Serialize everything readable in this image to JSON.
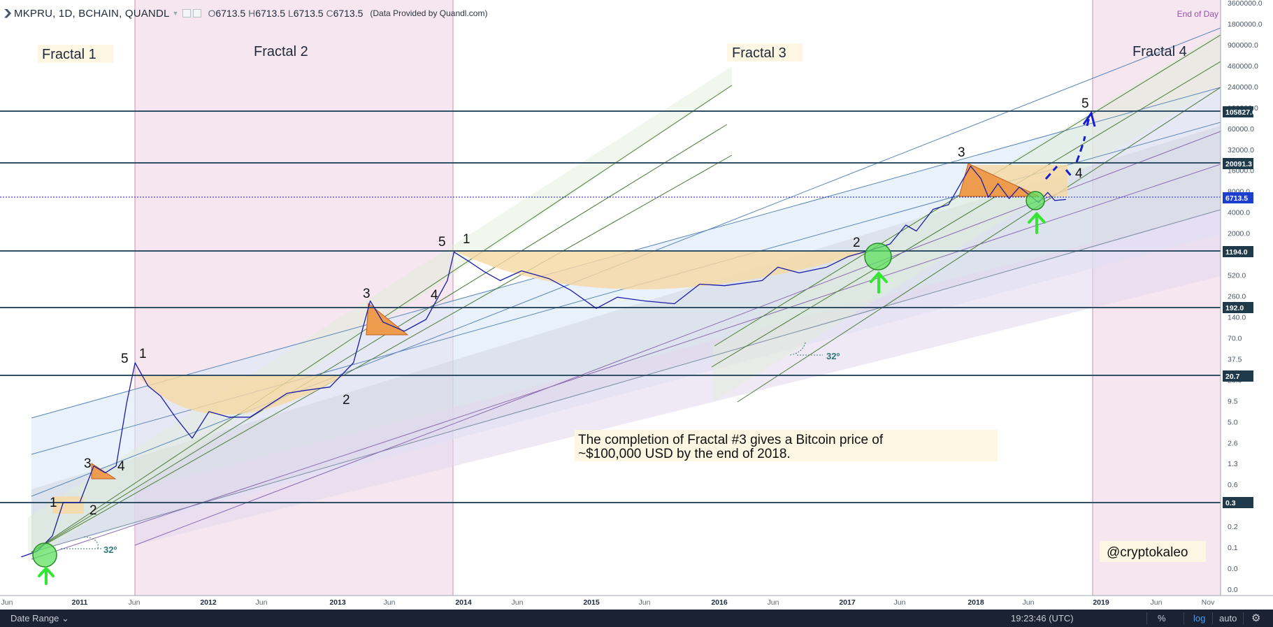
{
  "header": {
    "symbol": "MKPRU, 1D, BCHAIN, QUANDL",
    "ohlc": {
      "o": "6713.5",
      "h": "6713.5",
      "l": "6713.5",
      "c": "6713.5"
    },
    "provider": "(Data Provided by Quandl.com)",
    "end_of_day": "End of Day"
  },
  "footer": {
    "date_range": "Date Range",
    "time": "19:23:46 (UTC)",
    "percent": "%",
    "log": "log",
    "auto": "auto"
  },
  "colors": {
    "price_line": "#1c1ca8",
    "level_line": "#2f5066",
    "accent_label": "#1f3a4a",
    "current_price": "#1c3fd0",
    "fractal_shade": "#f3e4ee",
    "target_arrow": "#1a1ad0",
    "arrow_green": "#32e632",
    "annotation_bg": "#fdf6e3"
  },
  "chart_data": {
    "type": "line",
    "title": "",
    "scale": "log",
    "y_ticks": [
      "3600000.0",
      "1800000.0",
      "900000.0",
      "460000.0",
      "240000.0",
      "120000.0",
      "60000.0",
      "32000.0",
      "16000.0",
      "8000.0",
      "4000.0",
      "2000.0",
      "1000.0",
      "520.0",
      "260.0",
      "140.0",
      "70.0",
      "37.5",
      "20.0",
      "9.5",
      "5.0",
      "2.6",
      "1.3",
      "0.6",
      "0.3",
      "0.2",
      "0.1",
      "0.0",
      "0.0"
    ],
    "x_ticks": [
      "Jun",
      "2011",
      "Jun",
      "2012",
      "Jun",
      "2013",
      "Jun",
      "2014",
      "Jun",
      "2015",
      "Jun",
      "2016",
      "Jun",
      "2017",
      "Jun",
      "2018",
      "Jun",
      "2019",
      "Jun",
      "Nov"
    ],
    "price_labels": [
      "105827.6",
      "20091.3",
      "6713.5",
      "1194.0",
      "192.0",
      "20.7",
      "0.3"
    ],
    "series": [
      {
        "values": [
          {
            "x": "2010-07-18",
            "y": 0.05
          },
          {
            "x": "2010-09-01",
            "y": 0.06
          },
          {
            "x": "2010-10-15",
            "y": 0.1
          },
          {
            "x": "2010-11-15",
            "y": 0.3
          },
          {
            "x": "2011-01-01",
            "y": 0.3
          },
          {
            "x": "2011-02-10",
            "y": 1.0
          },
          {
            "x": "2011-03-15",
            "y": 0.8
          },
          {
            "x": "2011-04-15",
            "y": 1.0
          },
          {
            "x": "2011-05-15",
            "y": 8
          },
          {
            "x": "2011-06-08",
            "y": 30
          },
          {
            "x": "2011-07-15",
            "y": 14
          },
          {
            "x": "2011-08-20",
            "y": 10
          },
          {
            "x": "2011-10-01",
            "y": 5
          },
          {
            "x": "2011-11-18",
            "y": 2.5
          },
          {
            "x": "2012-01-05",
            "y": 6
          },
          {
            "x": "2012-03-01",
            "y": 5
          },
          {
            "x": "2012-05-01",
            "y": 5
          },
          {
            "x": "2012-08-15",
            "y": 11
          },
          {
            "x": "2012-10-01",
            "y": 12
          },
          {
            "x": "2012-12-15",
            "y": 13.5
          },
          {
            "x": "2013-02-20",
            "y": 30
          },
          {
            "x": "2013-04-09",
            "y": 230
          },
          {
            "x": "2013-05-15",
            "y": 115
          },
          {
            "x": "2013-07-15",
            "y": 85
          },
          {
            "x": "2013-09-15",
            "y": 125
          },
          {
            "x": "2013-11-15",
            "y": 450
          },
          {
            "x": "2013-12-04",
            "y": 1150
          },
          {
            "x": "2014-01-15",
            "y": 850
          },
          {
            "x": "2014-03-01",
            "y": 600
          },
          {
            "x": "2014-04-15",
            "y": 450
          },
          {
            "x": "2014-06-15",
            "y": 620
          },
          {
            "x": "2014-09-01",
            "y": 480
          },
          {
            "x": "2014-11-01",
            "y": 330
          },
          {
            "x": "2015-01-14",
            "y": 180
          },
          {
            "x": "2015-03-15",
            "y": 260
          },
          {
            "x": "2015-06-01",
            "y": 230
          },
          {
            "x": "2015-08-25",
            "y": 210
          },
          {
            "x": "2015-11-05",
            "y": 400
          },
          {
            "x": "2016-01-15",
            "y": 380
          },
          {
            "x": "2016-05-01",
            "y": 450
          },
          {
            "x": "2016-06-15",
            "y": 700
          },
          {
            "x": "2016-08-15",
            "y": 580
          },
          {
            "x": "2016-11-01",
            "y": 700
          },
          {
            "x": "2017-01-03",
            "y": 1000
          },
          {
            "x": "2017-03-01",
            "y": 1200
          },
          {
            "x": "2017-05-01",
            "y": 1500
          },
          {
            "x": "2017-06-15",
            "y": 2800
          },
          {
            "x": "2017-07-15",
            "y": 2300
          },
          {
            "x": "2017-09-01",
            "y": 4700
          },
          {
            "x": "2017-10-15",
            "y": 5500
          },
          {
            "x": "2017-12-17",
            "y": 19500
          },
          {
            "x": "2018-01-15",
            "y": 13000
          },
          {
            "x": "2018-02-06",
            "y": 7000
          },
          {
            "x": "2018-03-05",
            "y": 11000
          },
          {
            "x": "2018-04-06",
            "y": 6700
          },
          {
            "x": "2018-05-05",
            "y": 9800
          },
          {
            "x": "2018-06-29",
            "y": 5900
          },
          {
            "x": "2018-07-25",
            "y": 8200
          },
          {
            "x": "2018-08-14",
            "y": 6300
          },
          {
            "x": "2018-09-15",
            "y": 6500
          }
        ]
      }
    ],
    "annotations": {
      "fractals": [
        "Fractal 1",
        "Fractal 2",
        "Fractal 3",
        "Fractal 4"
      ],
      "waves": [
        "1",
        "2",
        "3",
        "4",
        "5",
        "1",
        "2",
        "3",
        "4",
        "5",
        "1",
        "2",
        "3",
        "4",
        "5"
      ],
      "angles": [
        "32º",
        "32º"
      ],
      "note_line1": "The completion of Fractal #3 gives a Bitcoin price of",
      "note_line2": "~$100,000 USD by the end of 2018.",
      "credit": "@cryptokaleo"
    }
  }
}
